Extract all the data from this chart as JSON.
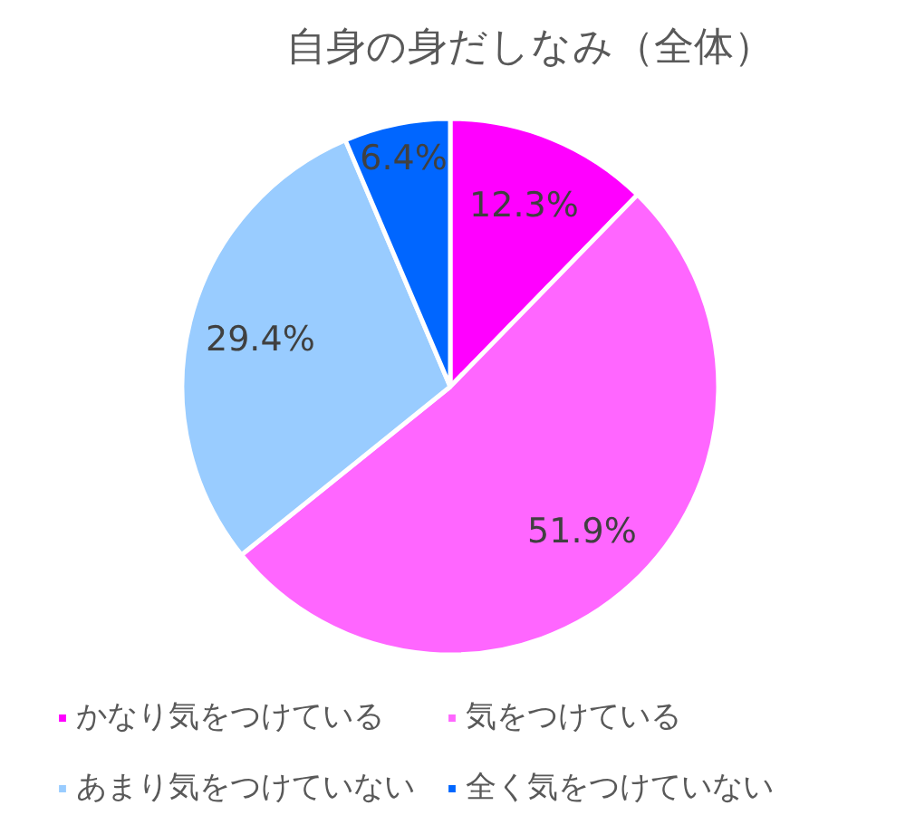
{
  "chart_data": {
    "type": "pie",
    "title": "自身の身だしなみ（全体）",
    "categories": [
      "かなり気をつけている",
      "気をつけている",
      "あまり気をつけていない",
      "全く気をつけていない"
    ],
    "values": [
      12.3,
      51.9,
      29.4,
      6.4
    ],
    "value_labels": [
      "12.3%",
      "51.9%",
      "29.4%",
      "6.4%"
    ],
    "colors": [
      "#ff00ff",
      "#ff66ff",
      "#99ccff",
      "#0066ff"
    ],
    "legend": "bottom"
  }
}
